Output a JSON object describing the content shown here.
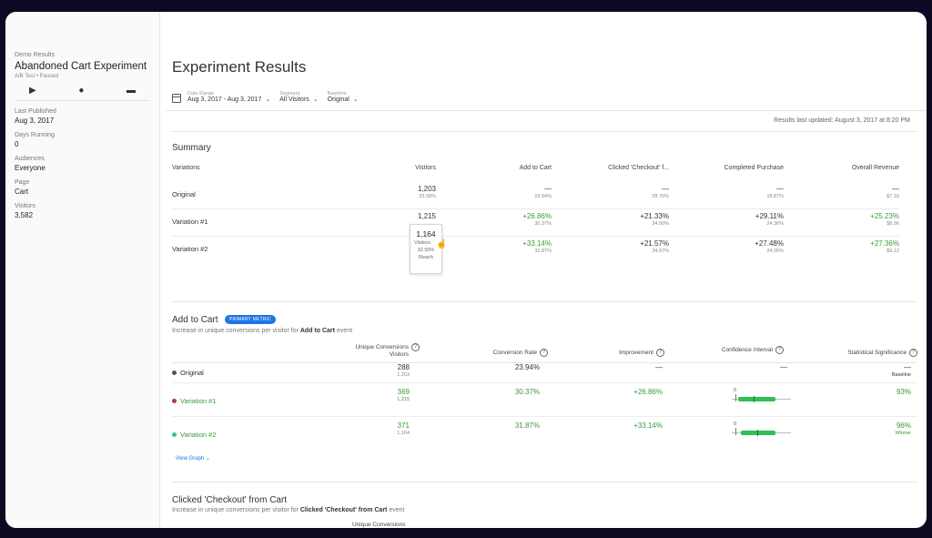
{
  "sidebar": {
    "breadcrumb": "Demo Results",
    "title": "Abandoned Cart Experiment",
    "meta": "A/B Test • Paused",
    "details": [
      {
        "label": "Last Published",
        "value": "Aug 3, 2017"
      },
      {
        "label": "Days Running",
        "value": "0"
      },
      {
        "label": "Audiences",
        "value": "Everyone"
      },
      {
        "label": "Page",
        "value": "Cart"
      },
      {
        "label": "Visitors",
        "value": "3,582"
      }
    ]
  },
  "header": {
    "title": "Experiment Results",
    "filters": [
      {
        "label": "Date Range",
        "value": "Aug 3, 2017 - Aug 3, 2017"
      },
      {
        "label": "Segment",
        "value": "All Visitors"
      },
      {
        "label": "Baseline",
        "value": "Original"
      }
    ],
    "updated": "Results last updated: August 3, 2017 at 8:20 PM"
  },
  "summary": {
    "title": "Summary",
    "columns": [
      "Variations",
      "Visitors",
      "Add to Cart",
      "Clicked 'Checkout' f...",
      "Completed Purchase",
      "Overall Revenue"
    ],
    "rows": [
      {
        "name": "Original",
        "visitors": "1,203",
        "visitors_pct": "33.58%",
        "cells": [
          {
            "main": "—",
            "sub": "23.94%"
          },
          {
            "main": "—",
            "sub": "28.76%"
          },
          {
            "main": "—",
            "sub": "18.87%"
          },
          {
            "main": "—",
            "sub": "$7.16"
          }
        ]
      },
      {
        "name": "Variation #1",
        "visitors": "1,215",
        "visitors_pct": "",
        "cells": [
          {
            "main": "+26.86%",
            "sub": "30.37%"
          },
          {
            "main": "+21.33%",
            "sub": "34.90%"
          },
          {
            "main": "+29.11%",
            "sub": "24.36%"
          },
          {
            "main": "+25.23%",
            "sub": "$8.96"
          }
        ]
      },
      {
        "name": "Variation #2",
        "visitors": "",
        "visitors_pct": "",
        "cells": [
          {
            "main": "+33.14%",
            "sub": "31.87%"
          },
          {
            "main": "+21.57%",
            "sub": "34.97%"
          },
          {
            "main": "+27.48%",
            "sub": "24.05%"
          },
          {
            "main": "+27.36%",
            "sub": "$9.12"
          }
        ]
      }
    ],
    "tooltip": {
      "value": "1,164",
      "label": "Visitors",
      "pct": "32.50%",
      "sub": "Reach"
    }
  },
  "add_to_cart": {
    "title": "Add to Cart",
    "badge": "PRIMARY METRIC",
    "desc_prefix": "Increase in unique conversions per visitor for ",
    "desc_bold": "Add to Cart",
    "desc_suffix": " event",
    "columns": {
      "conv": "Unique Conversions",
      "conv_sub": "Visitors",
      "rate": "Conversion Rate",
      "improvement": "Improvement",
      "ci": "Confidence Interval",
      "sig": "Statistical Significance"
    },
    "rows": [
      {
        "name": "Original",
        "color": "#555555",
        "conv": "288",
        "visitors": "1,203",
        "rate": "23.94%",
        "improvement": "—",
        "ci": "—",
        "sig": "—",
        "sig_sub": "Baseline"
      },
      {
        "name": "Variation #1",
        "color": "#b0336e",
        "conv": "369",
        "visitors": "1,215",
        "rate": "30.37%",
        "improvement": "+26.86%",
        "ci": "0",
        "sig": "93%",
        "sig_sub": ""
      },
      {
        "name": "Variation #2",
        "color": "#3fbf9a",
        "conv": "371",
        "visitors": "1,164",
        "rate": "31.87%",
        "improvement": "+33.14%",
        "ci": "0",
        "sig": "96%",
        "sig_sub": "Winner"
      }
    ],
    "view_graph": "View Graph"
  },
  "checkout": {
    "title": "Clicked 'Checkout' from Cart",
    "desc_prefix": "Increase in unique conversions per visitor for ",
    "desc_bold": "Clicked 'Checkout' from Cart",
    "desc_suffix": " event",
    "col_conv": "Unique Conversions"
  },
  "icons": [
    "play-icon",
    "eye-icon",
    "archive-icon",
    "calendar-icon",
    "chevron-down-icon",
    "help-icon",
    "cursor-icon"
  ],
  "colors": {
    "accent": "#1f74e6",
    "positive": "#3a9a3a",
    "ci_bar": "#2fbf55"
  }
}
